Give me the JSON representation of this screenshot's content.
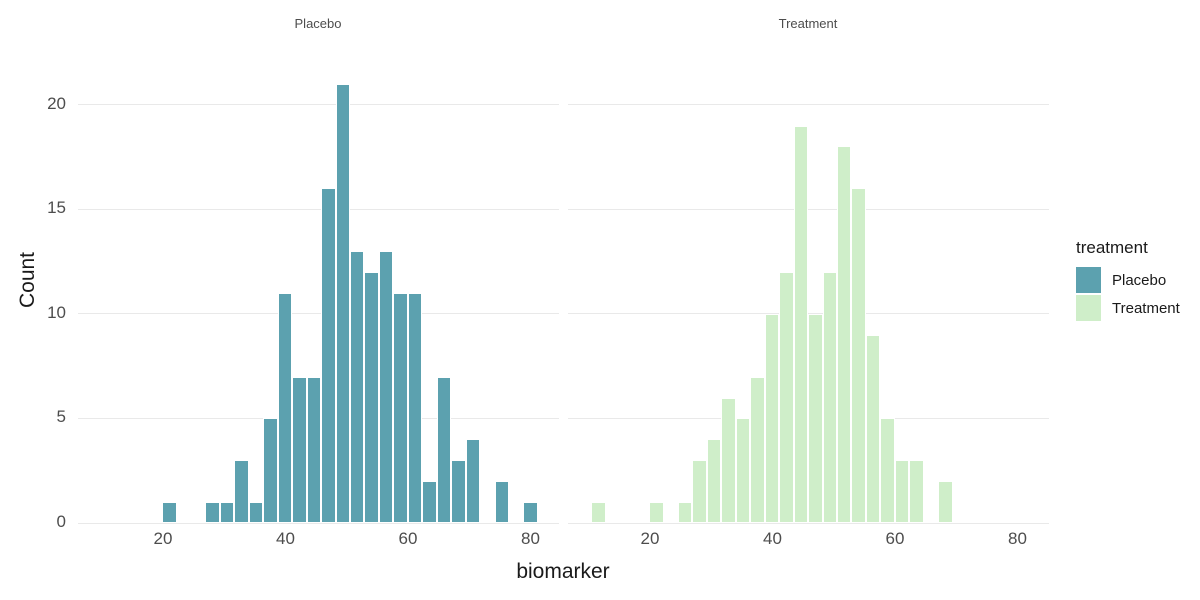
{
  "chart_data": {
    "type": "bar",
    "subtype": "faceted-histogram",
    "xlabel": "biomarker",
    "ylabel": "Count",
    "x_ticks": [
      20,
      40,
      60,
      80
    ],
    "y_ticks": [
      0,
      5,
      10,
      15,
      20
    ],
    "xlim": [
      6.5,
      85
    ],
    "ylim": [
      0,
      22
    ],
    "binwidth": 2.36,
    "grid": "horizontal-major-only",
    "legend": {
      "title": "treatment",
      "position": "right",
      "entries": [
        {
          "label": "Placebo",
          "color": "#5CA1AF"
        },
        {
          "label": "Treatment",
          "color": "#CFEEC9"
        }
      ]
    },
    "facets": [
      {
        "name": "Placebo",
        "color": "#5CA1AF",
        "bins": [
          {
            "x0": 19.84,
            "x1": 22.2,
            "count": 1
          },
          {
            "x0": 26.92,
            "x1": 29.28,
            "count": 1
          },
          {
            "x0": 29.28,
            "x1": 31.64,
            "count": 1
          },
          {
            "x0": 31.64,
            "x1": 34.0,
            "count": 3
          },
          {
            "x0": 34.0,
            "x1": 36.36,
            "count": 1
          },
          {
            "x0": 36.36,
            "x1": 38.72,
            "count": 5
          },
          {
            "x0": 38.72,
            "x1": 41.08,
            "count": 11
          },
          {
            "x0": 41.08,
            "x1": 43.44,
            "count": 7
          },
          {
            "x0": 43.44,
            "x1": 45.8,
            "count": 7
          },
          {
            "x0": 45.8,
            "x1": 48.16,
            "count": 16
          },
          {
            "x0": 48.16,
            "x1": 50.52,
            "count": 21
          },
          {
            "x0": 50.52,
            "x1": 52.88,
            "count": 13
          },
          {
            "x0": 52.88,
            "x1": 55.24,
            "count": 12
          },
          {
            "x0": 55.24,
            "x1": 57.6,
            "count": 13
          },
          {
            "x0": 57.6,
            "x1": 59.96,
            "count": 11
          },
          {
            "x0": 59.96,
            "x1": 62.32,
            "count": 11
          },
          {
            "x0": 62.32,
            "x1": 64.68,
            "count": 2
          },
          {
            "x0": 64.68,
            "x1": 67.04,
            "count": 7
          },
          {
            "x0": 67.04,
            "x1": 69.4,
            "count": 3
          },
          {
            "x0": 69.4,
            "x1": 71.76,
            "count": 4
          },
          {
            "x0": 74.12,
            "x1": 76.48,
            "count": 2
          },
          {
            "x0": 78.84,
            "x1": 81.2,
            "count": 1
          }
        ]
      },
      {
        "name": "Treatment",
        "color": "#CFEEC9",
        "bins": [
          {
            "x0": 10.4,
            "x1": 12.76,
            "count": 1
          },
          {
            "x0": 19.84,
            "x1": 22.2,
            "count": 1
          },
          {
            "x0": 24.56,
            "x1": 26.92,
            "count": 1
          },
          {
            "x0": 26.92,
            "x1": 29.28,
            "count": 3
          },
          {
            "x0": 29.28,
            "x1": 31.64,
            "count": 4
          },
          {
            "x0": 31.64,
            "x1": 34.0,
            "count": 6
          },
          {
            "x0": 34.0,
            "x1": 36.36,
            "count": 5
          },
          {
            "x0": 36.36,
            "x1": 38.72,
            "count": 7
          },
          {
            "x0": 38.72,
            "x1": 41.08,
            "count": 10
          },
          {
            "x0": 41.08,
            "x1": 43.44,
            "count": 12
          },
          {
            "x0": 43.44,
            "x1": 45.8,
            "count": 19
          },
          {
            "x0": 45.8,
            "x1": 48.16,
            "count": 10
          },
          {
            "x0": 48.16,
            "x1": 50.52,
            "count": 12
          },
          {
            "x0": 50.52,
            "x1": 52.88,
            "count": 18
          },
          {
            "x0": 52.88,
            "x1": 55.24,
            "count": 16
          },
          {
            "x0": 55.24,
            "x1": 57.6,
            "count": 9
          },
          {
            "x0": 57.6,
            "x1": 59.96,
            "count": 5
          },
          {
            "x0": 59.96,
            "x1": 62.32,
            "count": 3
          },
          {
            "x0": 62.32,
            "x1": 64.68,
            "count": 3
          },
          {
            "x0": 67.04,
            "x1": 69.4,
            "count": 2
          }
        ]
      }
    ]
  }
}
